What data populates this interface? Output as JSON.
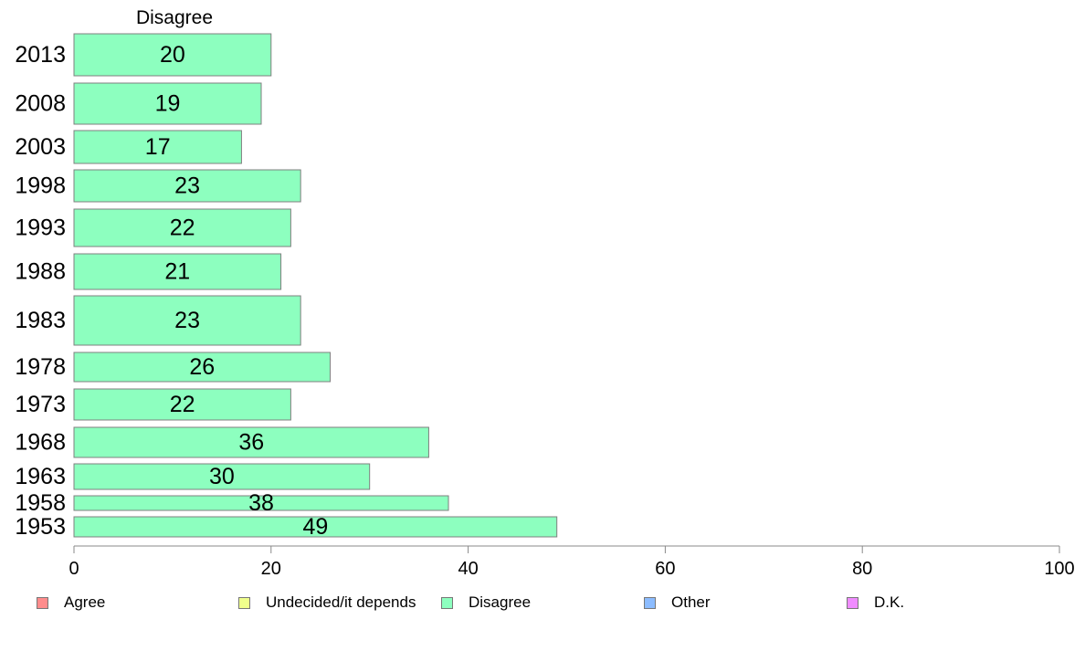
{
  "chart_data": {
    "type": "bar",
    "orientation": "horizontal",
    "title": "Disagree",
    "categories": [
      "2013",
      "2008",
      "2003",
      "1998",
      "1993",
      "1988",
      "1983",
      "1978",
      "1973",
      "1968",
      "1963",
      "1958",
      "1953"
    ],
    "series": [
      {
        "name": "Disagree",
        "values": [
          20,
          19,
          17,
          23,
          22,
          21,
          23,
          26,
          22,
          36,
          30,
          38,
          49
        ],
        "color": "#8dffbf"
      }
    ],
    "value_labels": [
      "20",
      "19",
      "17",
      "23",
      "22",
      "21",
      "23",
      "26",
      "22",
      "36",
      "30",
      "38",
      "49"
    ],
    "xlim": [
      0,
      100
    ],
    "xticks": [
      "0",
      "20",
      "40",
      "60",
      "80",
      "100"
    ],
    "grid": false,
    "legend_position": "bottom",
    "legend": [
      {
        "label": "Agree",
        "color": "#ff8c8c"
      },
      {
        "label": "Undecided/it depends",
        "color": "#f0ff8c"
      },
      {
        "label": "Disagree",
        "color": "#8dffbf"
      },
      {
        "label": "Other",
        "color": "#8cbcff"
      },
      {
        "label": "D.K.",
        "color": "#f08cff"
      }
    ]
  }
}
